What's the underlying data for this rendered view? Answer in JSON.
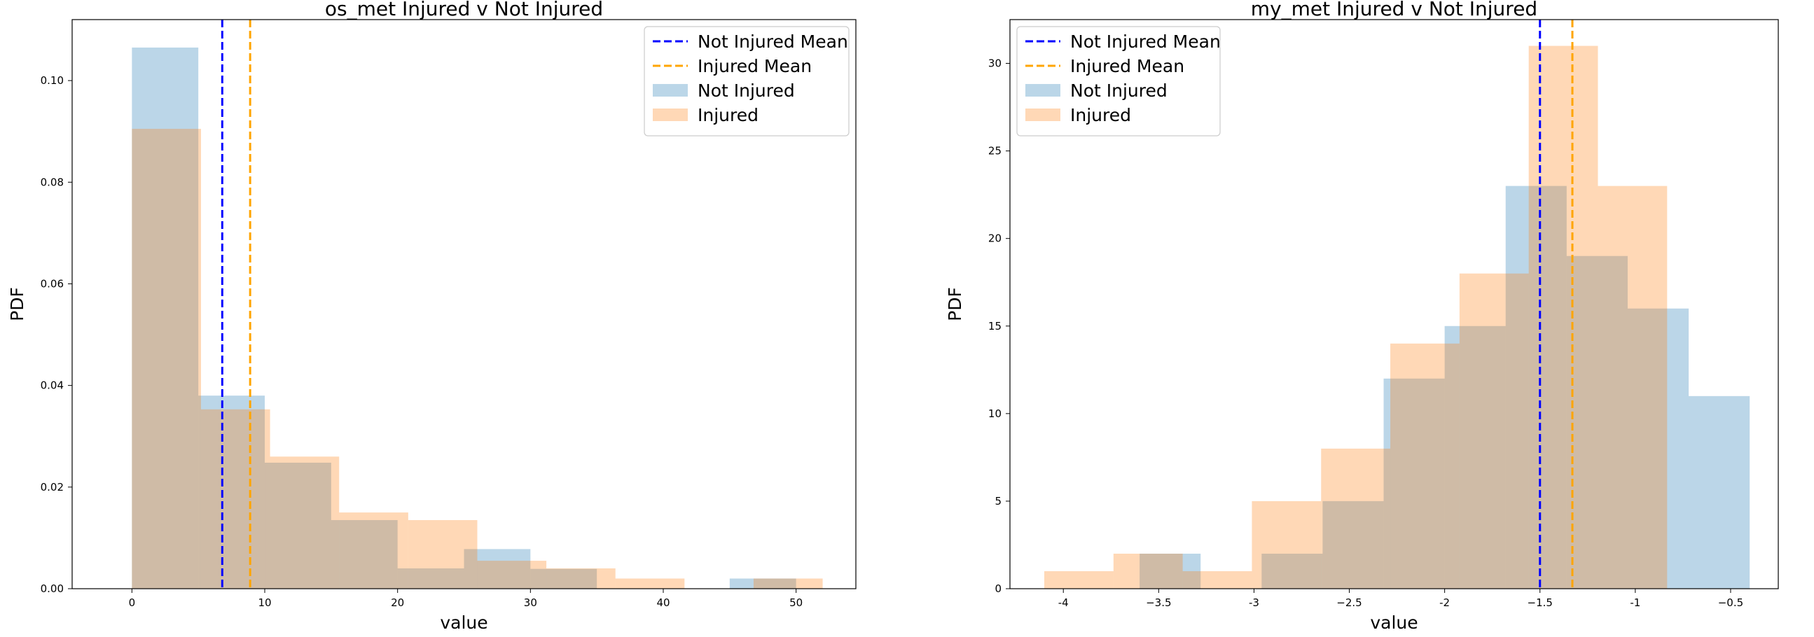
{
  "chart_data": [
    {
      "type": "histogram",
      "title": "os_met Injured v Not Injured",
      "xlabel": "value",
      "ylabel": "PDF",
      "xlim": [
        -4.5,
        54.5
      ],
      "ylim": [
        0,
        0.112
      ],
      "xticks": [
        0,
        10,
        20,
        30,
        40,
        50
      ],
      "yticks": [
        0.0,
        0.02,
        0.04,
        0.06,
        0.08,
        0.1
      ],
      "ytick_format": 2,
      "legend_position": "upper right",
      "legend": [
        {
          "label": "Not Injured Mean",
          "kind": "line",
          "color": "#0000ff"
        },
        {
          "label": "Injured Mean",
          "kind": "line",
          "color": "#ffa500"
        },
        {
          "label": "Not Injured",
          "kind": "patch",
          "color": "#1f77b4"
        },
        {
          "label": "Injured",
          "kind": "patch",
          "color": "#ff7f0e"
        }
      ],
      "series": [
        {
          "name": "Not Injured",
          "color": "#1f77b4",
          "opacity": 0.3,
          "bin_edges": [
            0.0,
            5.0,
            10.0,
            15.0,
            20.0,
            25.0,
            30.0,
            35.0,
            40.0,
            45.0,
            50.0
          ],
          "density": [
            0.1065,
            0.038,
            0.0248,
            0.0135,
            0.004,
            0.0078,
            0.0039,
            0.0,
            0.0,
            0.002
          ]
        },
        {
          "name": "Injured",
          "color": "#ff7f0e",
          "opacity": 0.3,
          "bin_edges": [
            0.0,
            5.2,
            10.4,
            15.6,
            20.8,
            26.0,
            31.2,
            36.4,
            41.6,
            46.8,
            52.0
          ],
          "density": [
            0.0905,
            0.0353,
            0.026,
            0.015,
            0.0135,
            0.0055,
            0.004,
            0.002,
            0.0,
            0.002
          ]
        }
      ],
      "mean_lines": [
        {
          "name": "Not Injured Mean",
          "x": 6.8,
          "color": "#0000ff"
        },
        {
          "name": "Injured Mean",
          "x": 8.9,
          "color": "#ffa500"
        }
      ]
    },
    {
      "type": "histogram",
      "title": "my_met Injured v Not Injured",
      "xlabel": "value",
      "ylabel": "PDF",
      "xlim": [
        -4.28,
        -0.25
      ],
      "ylim": [
        0,
        32.5
      ],
      "xticks": [
        -4.0,
        -3.5,
        -3.0,
        -2.5,
        -2.0,
        -1.5,
        -1.0,
        -0.5
      ],
      "yticks": [
        0,
        5,
        10,
        15,
        20,
        25,
        30
      ],
      "ytick_format": 0,
      "legend_position": "upper left",
      "legend": [
        {
          "label": "Not Injured Mean",
          "kind": "line",
          "color": "#0000ff"
        },
        {
          "label": "Injured Mean",
          "kind": "line",
          "color": "#ffa500"
        },
        {
          "label": "Not Injured",
          "kind": "patch",
          "color": "#1f77b4"
        },
        {
          "label": "Injured",
          "kind": "patch",
          "color": "#ff7f0e"
        }
      ],
      "series": [
        {
          "name": "Not Injured",
          "color": "#1f77b4",
          "opacity": 0.3,
          "bin_edges": [
            -3.6,
            -3.28,
            -2.96,
            -2.64,
            -2.32,
            -2.0,
            -1.68,
            -1.36,
            -1.04,
            -0.72,
            -0.4
          ],
          "density": [
            2,
            0,
            2,
            5,
            12,
            15,
            23,
            19,
            16,
            11
          ]
        },
        {
          "name": "Injured",
          "color": "#ff7f0e",
          "opacity": 0.3,
          "bin_edges": [
            -4.1,
            -3.737,
            -3.374,
            -3.011,
            -2.648,
            -2.285,
            -1.922,
            -1.559,
            -1.196,
            -0.833,
            -0.47
          ],
          "density": [
            1,
            2,
            1,
            5,
            8,
            14,
            18,
            31,
            23,
            0
          ]
        }
      ],
      "mean_lines": [
        {
          "name": "Not Injured Mean",
          "x": -1.5,
          "color": "#0000ff"
        },
        {
          "name": "Injured Mean",
          "x": -1.33,
          "color": "#ffa500"
        }
      ]
    }
  ]
}
